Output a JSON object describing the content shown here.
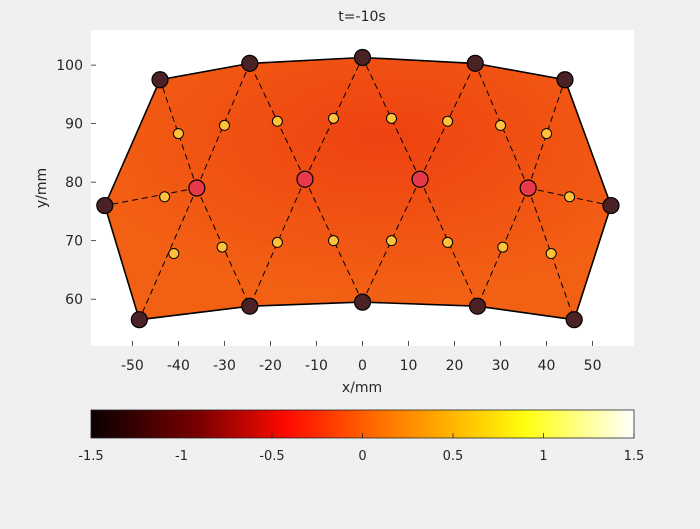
{
  "chart_data": {
    "type": "heatmap",
    "title": "t=-10s",
    "xlabel": "x/mm",
    "ylabel": "y/mm",
    "xlim": [
      -59,
      59
    ],
    "ylim": [
      52,
      106
    ],
    "xticks": [
      -50,
      -40,
      -30,
      -20,
      -10,
      0,
      10,
      20,
      30,
      40,
      50
    ],
    "yticks": [
      60,
      70,
      80,
      90,
      100
    ],
    "colorbar": {
      "colormap": "hot",
      "range": [
        -1.5,
        1.5
      ],
      "ticks": [
        -1.5,
        -1,
        -0.5,
        0,
        0.5,
        1,
        1.5
      ],
      "tick_labels": [
        "-1.5",
        "-1",
        "-0.5",
        "0",
        "0.5",
        "1",
        "1.5"
      ],
      "placement": "bottom"
    },
    "field_color": "#f26014",
    "outline": [
      [
        -48.5,
        56.5
      ],
      [
        -56,
        76
      ],
      [
        -44,
        97.5
      ],
      [
        -24.5,
        100.3
      ],
      [
        0,
        101.3
      ],
      [
        24.5,
        100.3
      ],
      [
        44,
        97.5
      ],
      [
        54,
        76
      ],
      [
        46,
        56.5
      ],
      [
        25,
        58.8
      ],
      [
        0,
        59.5
      ],
      [
        -24.5,
        58.8
      ]
    ],
    "nodes": [
      {
        "id": "A",
        "x": -48.5,
        "y": 56.5,
        "kind": "outer"
      },
      {
        "id": "B",
        "x": -56,
        "y": 76,
        "kind": "outer"
      },
      {
        "id": "C",
        "x": -44,
        "y": 97.5,
        "kind": "outer"
      },
      {
        "id": "D",
        "x": -24.5,
        "y": 100.3,
        "kind": "outer"
      },
      {
        "id": "E",
        "x": 0,
        "y": 101.3,
        "kind": "outer"
      },
      {
        "id": "F",
        "x": 24.5,
        "y": 100.3,
        "kind": "outer"
      },
      {
        "id": "G",
        "x": 44,
        "y": 97.5,
        "kind": "outer"
      },
      {
        "id": "H",
        "x": 54,
        "y": 76,
        "kind": "outer"
      },
      {
        "id": "I",
        "x": 46,
        "y": 56.5,
        "kind": "outer"
      },
      {
        "id": "J",
        "x": 25,
        "y": 58.8,
        "kind": "outer"
      },
      {
        "id": "K",
        "x": 0,
        "y": 59.5,
        "kind": "outer"
      },
      {
        "id": "L",
        "x": -24.5,
        "y": 58.8,
        "kind": "outer"
      },
      {
        "id": "M1",
        "x": -36,
        "y": 79,
        "kind": "center"
      },
      {
        "id": "M2",
        "x": -12.5,
        "y": 80.5,
        "kind": "center"
      },
      {
        "id": "M3",
        "x": 12.5,
        "y": 80.5,
        "kind": "center"
      },
      {
        "id": "M4",
        "x": 36,
        "y": 79,
        "kind": "center"
      }
    ],
    "edges": [
      [
        "M1",
        "A"
      ],
      [
        "M1",
        "B"
      ],
      [
        "M1",
        "C"
      ],
      [
        "M1",
        "D"
      ],
      [
        "M1",
        "L"
      ],
      [
        "M2",
        "D"
      ],
      [
        "M2",
        "E"
      ],
      [
        "M2",
        "L"
      ],
      [
        "M2",
        "K"
      ],
      [
        "M3",
        "E"
      ],
      [
        "M3",
        "F"
      ],
      [
        "M3",
        "K"
      ],
      [
        "M3",
        "J"
      ],
      [
        "M4",
        "F"
      ],
      [
        "M4",
        "G"
      ],
      [
        "M4",
        "H"
      ],
      [
        "M4",
        "I"
      ],
      [
        "M4",
        "J"
      ]
    ],
    "sensors": [
      {
        "x": -43,
        "y": 77.5
      },
      {
        "x": -40,
        "y": 88.3
      },
      {
        "x": -41,
        "y": 67.8
      },
      {
        "x": -30,
        "y": 89.7
      },
      {
        "x": -30.5,
        "y": 68.9
      },
      {
        "x": -18.5,
        "y": 90.4
      },
      {
        "x": -18.5,
        "y": 69.7
      },
      {
        "x": -6.3,
        "y": 90.9
      },
      {
        "x": -6.3,
        "y": 70
      },
      {
        "x": 6.3,
        "y": 90.9
      },
      {
        "x": 6.3,
        "y": 70
      },
      {
        "x": 18.5,
        "y": 90.4
      },
      {
        "x": 18.5,
        "y": 69.7
      },
      {
        "x": 30,
        "y": 89.7
      },
      {
        "x": 30.5,
        "y": 68.9
      },
      {
        "x": 40,
        "y": 88.3
      },
      {
        "x": 41,
        "y": 67.8
      },
      {
        "x": 45,
        "y": 77.5
      }
    ],
    "node_colors": {
      "outer": "#4a2226",
      "center": "#e8394a",
      "sensor": "#ffc23a"
    }
  }
}
